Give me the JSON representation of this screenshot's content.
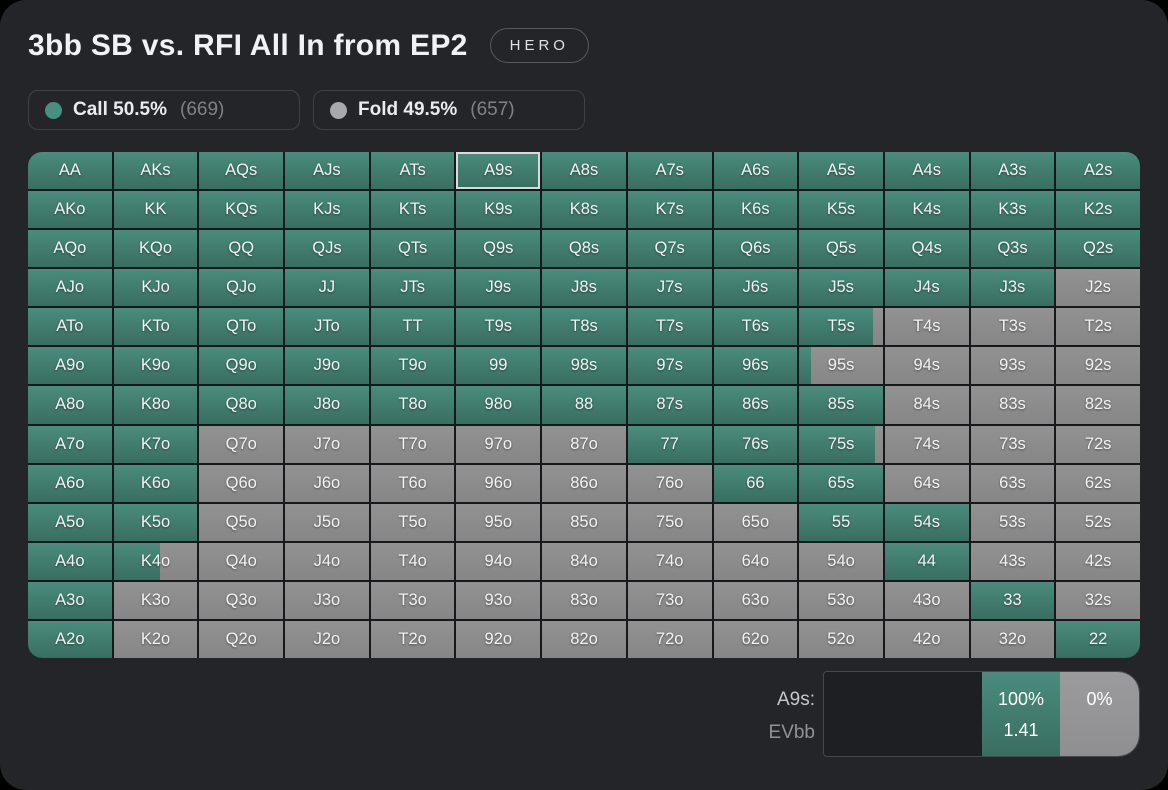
{
  "colors": {
    "call_top": "#4a8c7d",
    "call_bottom": "#396e61",
    "fold": "#8d8d8d",
    "grid_line": "#17181b",
    "selected_border": "#d9dadc"
  },
  "header": {
    "title": "3bb SB vs. RFI All In from EP2",
    "badge": "HERO"
  },
  "legend": [
    {
      "label": "Call 50.5%",
      "count": "(669)",
      "color": "#479080"
    },
    {
      "label": "Fold 49.5%",
      "count": "(657)",
      "color": "#a7a9ab"
    }
  ],
  "grid": {
    "selected": "A9s",
    "rows": [
      {
        "labels": [
          "AA",
          "AKs",
          "AQs",
          "AJs",
          "ATs",
          "A9s",
          "A8s",
          "A7s",
          "A6s",
          "A5s",
          "A4s",
          "A3s",
          "A2s"
        ],
        "call": [
          1,
          1,
          1,
          1,
          1,
          1,
          1,
          1,
          1,
          1,
          1,
          1,
          1
        ]
      },
      {
        "labels": [
          "AKo",
          "KK",
          "KQs",
          "KJs",
          "KTs",
          "K9s",
          "K8s",
          "K7s",
          "K6s",
          "K5s",
          "K4s",
          "K3s",
          "K2s"
        ],
        "call": [
          1,
          1,
          1,
          1,
          1,
          1,
          1,
          1,
          1,
          1,
          1,
          1,
          1
        ]
      },
      {
        "labels": [
          "AQo",
          "KQo",
          "QQ",
          "QJs",
          "QTs",
          "Q9s",
          "Q8s",
          "Q7s",
          "Q6s",
          "Q5s",
          "Q4s",
          "Q3s",
          "Q2s"
        ],
        "call": [
          1,
          1,
          1,
          1,
          1,
          1,
          1,
          1,
          1,
          1,
          1,
          1,
          1
        ]
      },
      {
        "labels": [
          "AJo",
          "KJo",
          "QJo",
          "JJ",
          "JTs",
          "J9s",
          "J8s",
          "J7s",
          "J6s",
          "J5s",
          "J4s",
          "J3s",
          "J2s"
        ],
        "call": [
          1,
          1,
          1,
          1,
          1,
          1,
          1,
          1,
          1,
          1,
          1,
          1,
          0
        ]
      },
      {
        "labels": [
          "ATo",
          "KTo",
          "QTo",
          "JTo",
          "TT",
          "T9s",
          "T8s",
          "T7s",
          "T6s",
          "T5s",
          "T4s",
          "T3s",
          "T2s"
        ],
        "call": [
          1,
          1,
          1,
          1,
          1,
          1,
          1,
          1,
          1,
          0.88,
          0,
          0,
          0
        ]
      },
      {
        "labels": [
          "A9o",
          "K9o",
          "Q9o",
          "J9o",
          "T9o",
          "99",
          "98s",
          "97s",
          "96s",
          "95s",
          "94s",
          "93s",
          "92s"
        ],
        "call": [
          1,
          1,
          1,
          1,
          1,
          1,
          1,
          1,
          1,
          0.14,
          0,
          0,
          0
        ]
      },
      {
        "labels": [
          "A8o",
          "K8o",
          "Q8o",
          "J8o",
          "T8o",
          "98o",
          "88",
          "87s",
          "86s",
          "85s",
          "84s",
          "83s",
          "82s"
        ],
        "call": [
          1,
          1,
          1,
          1,
          1,
          1,
          1,
          1,
          1,
          1,
          0,
          0,
          0
        ]
      },
      {
        "labels": [
          "A7o",
          "K7o",
          "Q7o",
          "J7o",
          "T7o",
          "97o",
          "87o",
          "77",
          "76s",
          "75s",
          "74s",
          "73s",
          "72s"
        ],
        "call": [
          1,
          1,
          0,
          0,
          0,
          0,
          0,
          1,
          1,
          0.9,
          0,
          0,
          0
        ]
      },
      {
        "labels": [
          "A6o",
          "K6o",
          "Q6o",
          "J6o",
          "T6o",
          "96o",
          "86o",
          "76o",
          "66",
          "65s",
          "64s",
          "63s",
          "62s"
        ],
        "call": [
          1,
          1,
          0,
          0,
          0,
          0,
          0,
          0,
          1,
          1,
          0,
          0,
          0
        ]
      },
      {
        "labels": [
          "A5o",
          "K5o",
          "Q5o",
          "J5o",
          "T5o",
          "95o",
          "85o",
          "75o",
          "65o",
          "55",
          "54s",
          "53s",
          "52s"
        ],
        "call": [
          1,
          1,
          0,
          0,
          0,
          0,
          0,
          0,
          0,
          1,
          1,
          0,
          0
        ]
      },
      {
        "labels": [
          "A4o",
          "K4o",
          "Q4o",
          "J4o",
          "T4o",
          "94o",
          "84o",
          "74o",
          "64o",
          "54o",
          "44",
          "43s",
          "42s"
        ],
        "call": [
          1,
          0.55,
          0,
          0,
          0,
          0,
          0,
          0,
          0,
          0,
          1,
          0,
          0
        ]
      },
      {
        "labels": [
          "A3o",
          "K3o",
          "Q3o",
          "J3o",
          "T3o",
          "93o",
          "83o",
          "73o",
          "63o",
          "53o",
          "43o",
          "33",
          "32s"
        ],
        "call": [
          1,
          0,
          0,
          0,
          0,
          0,
          0,
          0,
          0,
          0,
          0,
          1,
          0
        ]
      },
      {
        "labels": [
          "A2o",
          "K2o",
          "Q2o",
          "J2o",
          "T2o",
          "92o",
          "82o",
          "72o",
          "62o",
          "52o",
          "42o",
          "32o",
          "22"
        ],
        "call": [
          1,
          0,
          0,
          0,
          0,
          0,
          0,
          0,
          0,
          0,
          0,
          0,
          1
        ]
      }
    ]
  },
  "detail": {
    "hand_label": "A9s:",
    "ev_label": "EVbb",
    "call_pct": "100%",
    "ev_value": "1.41",
    "fold_pct": "0%"
  }
}
